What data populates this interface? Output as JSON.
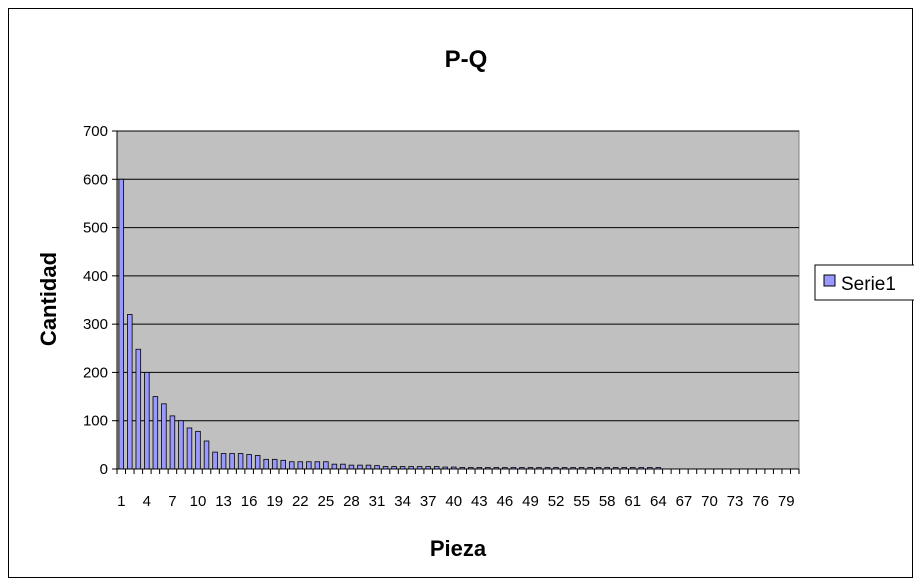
{
  "chart_data": {
    "type": "bar",
    "title": "P-Q",
    "xlabel": "Pieza",
    "ylabel": "Cantidad",
    "ylim": [
      0,
      700
    ],
    "yticks": [
      "0",
      "100",
      "200",
      "300",
      "400",
      "500",
      "600",
      "700"
    ],
    "x_tick_every": 3,
    "grid": true,
    "legend_position": "right",
    "colors": {
      "plot_background": "#c0c0c0",
      "bar_fill": "#9999ff",
      "bar_stroke": "#000000"
    },
    "categories": [
      1,
      2,
      3,
      4,
      5,
      6,
      7,
      8,
      9,
      10,
      11,
      12,
      13,
      14,
      15,
      16,
      17,
      18,
      19,
      20,
      21,
      22,
      23,
      24,
      25,
      26,
      27,
      28,
      29,
      30,
      31,
      32,
      33,
      34,
      35,
      36,
      37,
      38,
      39,
      40,
      41,
      42,
      43,
      44,
      45,
      46,
      47,
      48,
      49,
      50,
      51,
      52,
      53,
      54,
      55,
      56,
      57,
      58,
      59,
      60,
      61,
      62,
      63,
      64,
      65,
      66,
      67,
      68,
      69,
      70,
      71,
      72,
      73,
      74,
      75,
      76,
      77,
      78,
      79,
      80
    ],
    "series": [
      {
        "name": "Serie1",
        "values": [
          600,
          320,
          248,
          200,
          150,
          135,
          110,
          100,
          85,
          78,
          58,
          35,
          32,
          32,
          32,
          30,
          28,
          20,
          20,
          18,
          15,
          15,
          15,
          15,
          15,
          10,
          10,
          8,
          8,
          8,
          7,
          5,
          5,
          5,
          5,
          5,
          5,
          5,
          4,
          4,
          3,
          3,
          3,
          3,
          3,
          3,
          3,
          3,
          3,
          3,
          3,
          3,
          3,
          3,
          3,
          3,
          3,
          3,
          3,
          3,
          3,
          3,
          3,
          3,
          0,
          0,
          0,
          0,
          0,
          0,
          0,
          0,
          0,
          0,
          0,
          0,
          0,
          0,
          0,
          0
        ]
      }
    ]
  }
}
